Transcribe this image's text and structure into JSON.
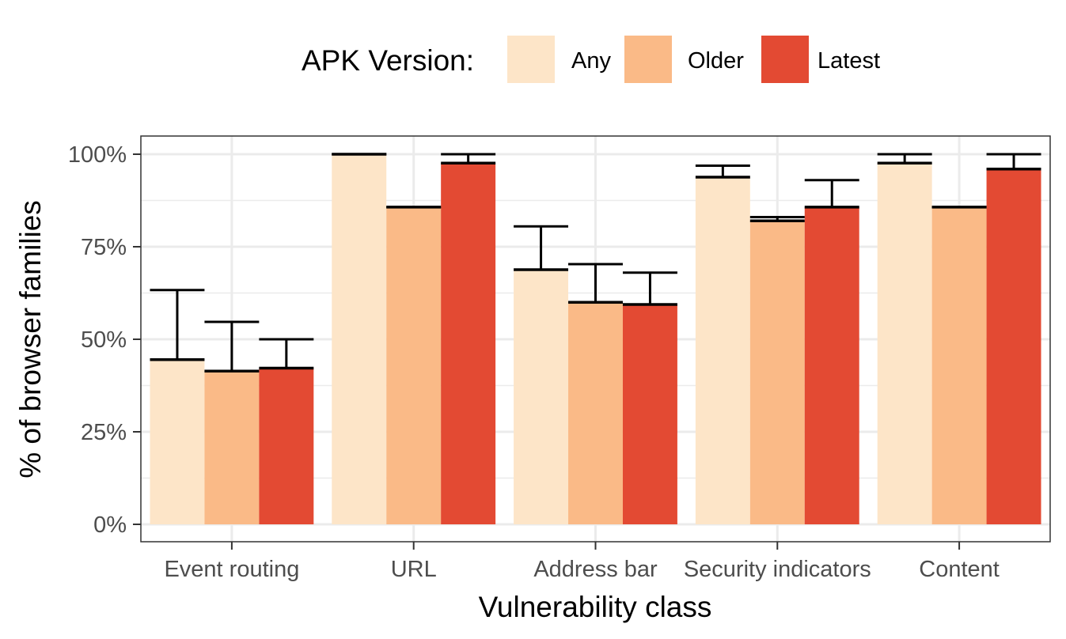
{
  "chart_data": {
    "type": "bar",
    "xlabel": "Vulnerability class",
    "ylabel": "% of browser families",
    "ylim": [
      0,
      1.05
    ],
    "yticks": [
      {
        "value": 0,
        "label": "0%"
      },
      {
        "value": 0.25,
        "label": "25%"
      },
      {
        "value": 0.5,
        "label": "50%"
      },
      {
        "value": 0.75,
        "label": "75%"
      },
      {
        "value": 1.0,
        "label": "100%"
      }
    ],
    "categories": [
      "Event routing",
      "URL",
      "Address bar",
      "Security indicators",
      "Content"
    ],
    "legend": {
      "title": "APK Version:",
      "placement": "top"
    },
    "grid": true,
    "series": [
      {
        "name": "Any",
        "color": "#FDE5C8",
        "values": [
          0.445,
          1.0,
          0.688,
          0.938,
          0.976
        ],
        "error_upper": [
          0.633,
          1.0,
          0.805,
          0.969,
          1.0
        ]
      },
      {
        "name": "Older",
        "color": "#FABA87",
        "values": [
          0.414,
          0.857,
          0.6,
          0.82,
          0.857
        ],
        "error_upper": [
          0.547,
          0.857,
          0.703,
          0.83,
          0.857
        ]
      },
      {
        "name": "Latest",
        "color": "#E34A33",
        "values": [
          0.422,
          0.976,
          0.594,
          0.857,
          0.96
        ],
        "error_upper": [
          0.5,
          1.0,
          0.68,
          0.93,
          1.0
        ]
      }
    ]
  }
}
